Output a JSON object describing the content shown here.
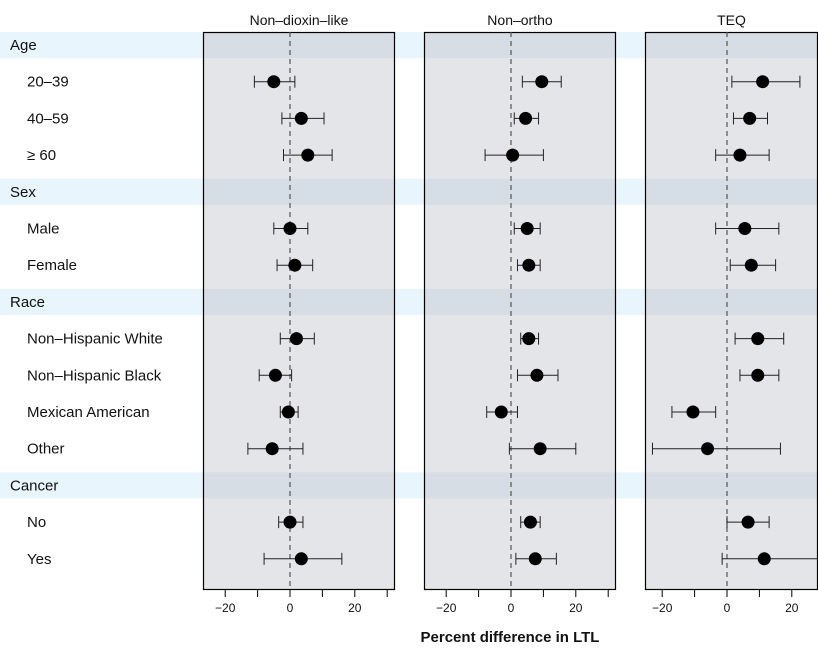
{
  "chart_data": {
    "type": "scatter",
    "xlabel": "Percent difference in LTL",
    "xlim": [
      -27,
      32
    ],
    "xticks": [
      -20,
      0,
      20
    ],
    "reference_line_x": 0,
    "colors": {
      "panel_bg": "#e3e5e8",
      "band": "#e8f5fd",
      "band_in_panel": "#d6dde4",
      "marker": "#000000"
    },
    "rows": [
      {
        "label": "Age",
        "header": true
      },
      {
        "label": "20–39"
      },
      {
        "label": "40–59"
      },
      {
        "label": "≥ 60"
      },
      {
        "label": "Sex",
        "header": true
      },
      {
        "label": "Male"
      },
      {
        "label": "Female"
      },
      {
        "label": "Race",
        "header": true
      },
      {
        "label": "Non–Hispanic White"
      },
      {
        "label": "Non–Hispanic Black"
      },
      {
        "label": "Mexican American"
      },
      {
        "label": "Other"
      },
      {
        "label": "Cancer",
        "header": true
      },
      {
        "label": "No"
      },
      {
        "label": "Yes"
      }
    ],
    "panels": [
      {
        "title": "Non–dioxin–like",
        "points": [
          null,
          {
            "est": -5,
            "lo": -11,
            "hi": 1.5
          },
          {
            "est": 3.5,
            "lo": -2.5,
            "hi": 10.5
          },
          {
            "est": 5.5,
            "lo": -2,
            "hi": 13
          },
          null,
          {
            "est": 0,
            "lo": -5,
            "hi": 5.5
          },
          {
            "est": 1.5,
            "lo": -4,
            "hi": 7
          },
          null,
          {
            "est": 2,
            "lo": -3,
            "hi": 7.5
          },
          {
            "est": -4.5,
            "lo": -9.5,
            "hi": 0.5
          },
          {
            "est": -0.5,
            "lo": -3,
            "hi": 2.5
          },
          {
            "est": -5.5,
            "lo": -13,
            "hi": 4
          },
          null,
          {
            "est": 0,
            "lo": -3.5,
            "hi": 4
          },
          {
            "est": 3.5,
            "lo": -8,
            "hi": 16
          }
        ]
      },
      {
        "title": "Non–ortho",
        "points": [
          null,
          {
            "est": 9.5,
            "lo": 3.5,
            "hi": 15.5
          },
          {
            "est": 4.5,
            "lo": 1,
            "hi": 8.5
          },
          {
            "est": 0.5,
            "lo": -8,
            "hi": 10
          },
          null,
          {
            "est": 5,
            "lo": 1,
            "hi": 9
          },
          {
            "est": 5.5,
            "lo": 2,
            "hi": 9
          },
          null,
          {
            "est": 5.5,
            "lo": 3,
            "hi": 8.5
          },
          {
            "est": 8,
            "lo": 2,
            "hi": 14.5
          },
          {
            "est": -3,
            "lo": -7.5,
            "hi": 2
          },
          {
            "est": 9,
            "lo": -0.5,
            "hi": 20
          },
          null,
          {
            "est": 6,
            "lo": 3,
            "hi": 9
          },
          {
            "est": 7.5,
            "lo": 1.5,
            "hi": 14
          }
        ]
      },
      {
        "title": "TEQ",
        "points": [
          null,
          {
            "est": 11,
            "lo": 1.5,
            "hi": 22.5
          },
          {
            "est": 7,
            "lo": 2,
            "hi": 12.5
          },
          {
            "est": 4,
            "lo": -3.5,
            "hi": 13
          },
          null,
          {
            "est": 5.5,
            "lo": -3.5,
            "hi": 16
          },
          {
            "est": 7.5,
            "lo": 1,
            "hi": 15
          },
          null,
          {
            "est": 9.5,
            "lo": 2.5,
            "hi": 17.5
          },
          {
            "est": 9.5,
            "lo": 4,
            "hi": 16
          },
          {
            "est": -10.5,
            "lo": -17,
            "hi": -3.5
          },
          {
            "est": -6,
            "lo": -23,
            "hi": 16.5
          },
          null,
          {
            "est": 6.5,
            "lo": 0,
            "hi": 13
          },
          {
            "est": 11.5,
            "lo": -1.5,
            "hi": 29
          }
        ]
      }
    ]
  }
}
